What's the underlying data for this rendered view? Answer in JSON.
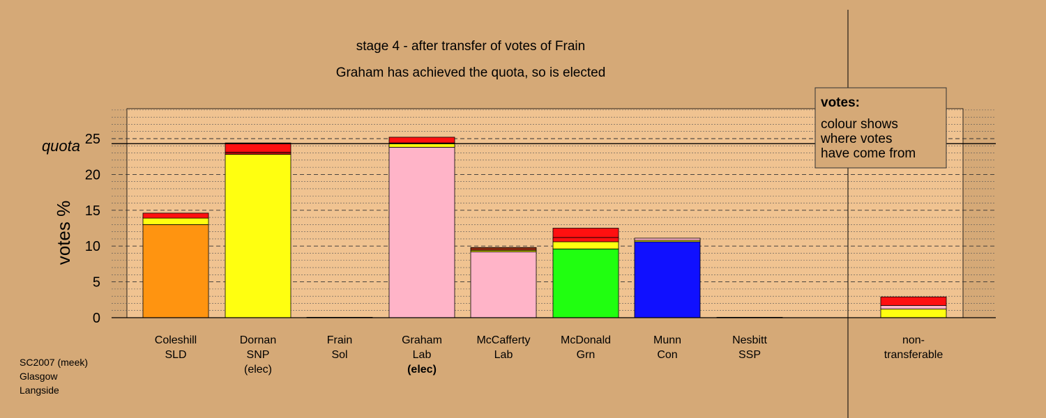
{
  "chart_data": {
    "type": "bar",
    "stacked": true,
    "title": "stage 4 - after transfer of votes of Frain",
    "subtitle": "Graham has achieved the quota, so is elected",
    "ylabel": "votes %",
    "ylim": [
      0,
      29.5
    ],
    "yticks": [
      0,
      5,
      10,
      15,
      20,
      25
    ],
    "grid": true,
    "quota": {
      "label": "quota",
      "value": 24.3
    },
    "legend": {
      "position": "top-right",
      "title": "votes:",
      "lines": [
        "colour shows",
        "where votes",
        "have come from"
      ]
    },
    "categories": [
      {
        "lines": [
          "Coleshill",
          "SLD"
        ],
        "bold_line": null
      },
      {
        "lines": [
          "Dornan",
          "SNP",
          "(elec)"
        ],
        "bold_line": null
      },
      {
        "lines": [
          "Frain",
          "Sol"
        ],
        "bold_line": null
      },
      {
        "lines": [
          "Graham",
          "Lab",
          "(elec)"
        ],
        "bold_line": 2
      },
      {
        "lines": [
          "McCafferty",
          "Lab"
        ],
        "bold_line": null
      },
      {
        "lines": [
          "McDonald",
          "Grn"
        ],
        "bold_line": null
      },
      {
        "lines": [
          "Munn",
          "Con"
        ],
        "bold_line": null
      },
      {
        "lines": [
          "Nesbitt",
          "SSP"
        ],
        "bold_line": null
      },
      {
        "lines": [
          "non-",
          "transferable"
        ],
        "bold_line": null
      }
    ],
    "bars": [
      {
        "segments": [
          {
            "value": 13.0,
            "color": "#ff9410"
          },
          {
            "value": 0.9,
            "color": "#ffff10"
          },
          {
            "value": 0.7,
            "color": "#ff1010"
          }
        ]
      },
      {
        "segments": [
          {
            "value": 22.8,
            "color": "#ffff10"
          },
          {
            "value": 0.3,
            "color": "#b01010"
          },
          {
            "value": 1.3,
            "color": "#ff1010"
          }
        ]
      },
      {
        "segments": [
          {
            "value": 0.06,
            "color": "#ff1010"
          }
        ]
      },
      {
        "segments": [
          {
            "value": 23.8,
            "color": "#ffb4c8"
          },
          {
            "value": 0.6,
            "color": "#ffff10"
          },
          {
            "value": 0.8,
            "color": "#ff1010"
          }
        ]
      },
      {
        "segments": [
          {
            "value": 9.2,
            "color": "#ffb4c8"
          },
          {
            "value": 0.2,
            "color": "#ffff10"
          },
          {
            "value": 0.4,
            "color": "#8b2a10"
          }
        ]
      },
      {
        "segments": [
          {
            "value": 9.6,
            "color": "#20ff10"
          },
          {
            "value": 1.0,
            "color": "#ffff10"
          },
          {
            "value": 0.6,
            "color": "#ff1010"
          },
          {
            "value": 1.3,
            "color": "#ff1010"
          }
        ]
      },
      {
        "segments": [
          {
            "value": 10.6,
            "color": "#1010ff"
          },
          {
            "value": 0.2,
            "color": "#ffff10"
          },
          {
            "value": 0.3,
            "color": "#ffb4c8"
          }
        ]
      },
      {
        "segments": [
          {
            "value": 0.06,
            "color": "#ff1010"
          }
        ]
      },
      {
        "segments": [
          {
            "value": 1.2,
            "color": "#ffff10"
          },
          {
            "value": 0.5,
            "color": "#ffb4c8"
          },
          {
            "value": 1.2,
            "color": "#ff1010"
          }
        ]
      }
    ]
  },
  "footer": {
    "line1": "SC2007 (meek)",
    "line2": "Glasgow",
    "line3": "Langside"
  },
  "colors": {
    "background": "#d5a977",
    "plot_fill": "#f0c391"
  }
}
